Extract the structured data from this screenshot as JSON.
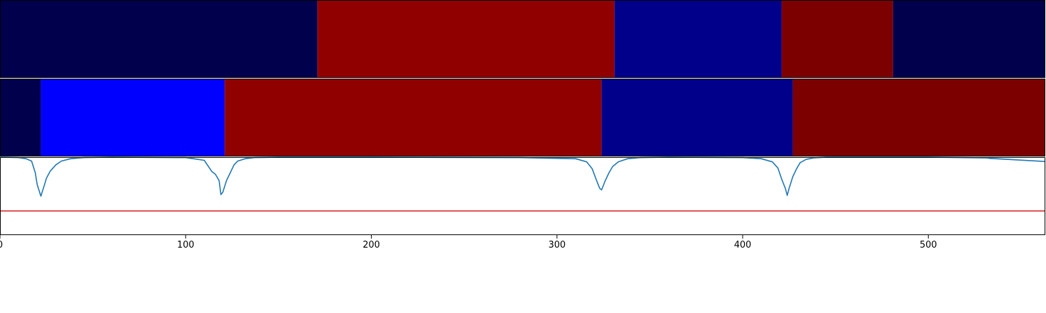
{
  "chart_data": [
    {
      "type": "heatmap",
      "panel": "top",
      "xlim": [
        0,
        563
      ],
      "segments": [
        {
          "start": 0,
          "end": 171,
          "color": "#00004d"
        },
        {
          "start": 171,
          "end": 331,
          "color": "#900000"
        },
        {
          "start": 331,
          "end": 421,
          "color": "#00008a"
        },
        {
          "start": 421,
          "end": 481,
          "color": "#7d0000"
        },
        {
          "start": 481,
          "end": 563,
          "color": "#00004d"
        }
      ]
    },
    {
      "type": "heatmap",
      "panel": "middle",
      "xlim": [
        0,
        563
      ],
      "segments": [
        {
          "start": 0,
          "end": 22,
          "color": "#00004d"
        },
        {
          "start": 22,
          "end": 121,
          "color": "#0000ff"
        },
        {
          "start": 121,
          "end": 324,
          "color": "#900000"
        },
        {
          "start": 324,
          "end": 427,
          "color": "#00008a"
        },
        {
          "start": 427,
          "end": 563,
          "color": "#7d0000"
        }
      ]
    },
    {
      "type": "line",
      "panel": "bottom",
      "xlim": [
        0,
        563
      ],
      "ylim": [
        0,
        1
      ],
      "xticks": [
        "0",
        "100",
        "200",
        "300",
        "400",
        "500"
      ],
      "xtick_values": [
        0,
        100,
        200,
        300,
        400,
        500
      ],
      "grid": false,
      "series": [
        {
          "color": "#1f77b4",
          "x": [
            0,
            10,
            14,
            17,
            19,
            20,
            22,
            24,
            25,
            27,
            30,
            33,
            38,
            45,
            60,
            100,
            110,
            114,
            116,
            118,
            119,
            120,
            122,
            124,
            126,
            128,
            132,
            137,
            150,
            200,
            280,
            310,
            316,
            319,
            321,
            323,
            324,
            326,
            328,
            330,
            333,
            338,
            345,
            360,
            400,
            410,
            416,
            419,
            421,
            423,
            424,
            425,
            427,
            429,
            431,
            434,
            438,
            445,
            460,
            500,
            532,
            533,
            563
          ],
          "y": [
            1.0,
            0.995,
            0.98,
            0.95,
            0.8,
            0.65,
            0.5,
            0.65,
            0.73,
            0.82,
            0.9,
            0.95,
            0.98,
            0.995,
            1.0,
            0.995,
            0.96,
            0.82,
            0.78,
            0.7,
            0.52,
            0.55,
            0.7,
            0.8,
            0.9,
            0.95,
            0.98,
            0.995,
            1.0,
            1.0,
            0.995,
            0.98,
            0.94,
            0.85,
            0.72,
            0.6,
            0.58,
            0.7,
            0.8,
            0.88,
            0.94,
            0.98,
            0.995,
            1.0,
            0.995,
            0.98,
            0.94,
            0.86,
            0.72,
            0.6,
            0.51,
            0.6,
            0.75,
            0.85,
            0.93,
            0.97,
            0.99,
            1.0,
            1.0,
            1.0,
            0.99,
            0.985,
            0.945
          ]
        },
        {
          "color": "#d62728",
          "x": [
            0,
            563
          ],
          "y": [
            0.31,
            0.31
          ]
        }
      ]
    }
  ]
}
